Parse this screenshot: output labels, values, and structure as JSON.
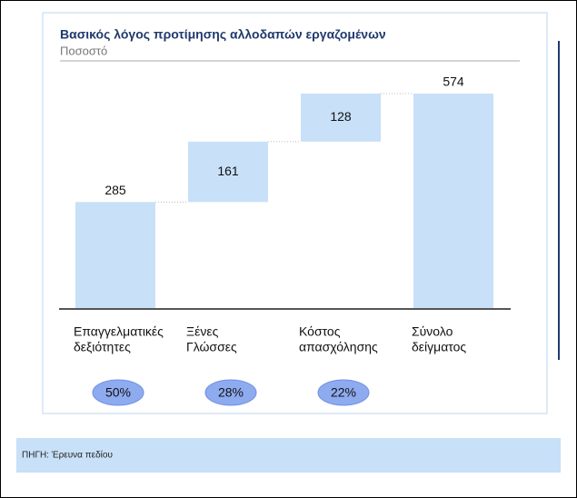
{
  "chart_data": {
    "type": "waterfall",
    "title": "Βασικός λόγος προτίμησης αλλοδαπών εργαζομένων",
    "subtitle": "Ποσοστό",
    "categories": [
      [
        "Επαγγελματικές",
        "δεξιότητες"
      ],
      [
        "Ξένες",
        "Γλώσσες"
      ],
      [
        "Κόστος",
        "απασχόλησης"
      ],
      [
        "Σύνολο",
        "δείγματος"
      ]
    ],
    "values": [
      285,
      161,
      128,
      574
    ],
    "totals": [
      false,
      false,
      false,
      true
    ],
    "color": "#c8e0f8",
    "shares": {
      "values": [
        50,
        28,
        22
      ],
      "value_labels": [
        "50%",
        "28%",
        "22%"
      ],
      "color": "#8eabf0"
    },
    "source": "ΠΗΓΗ: Έρευνα πεδίου"
  }
}
